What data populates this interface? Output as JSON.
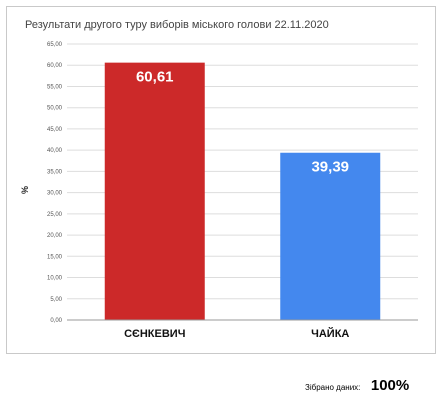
{
  "chart_data": {
    "type": "bar",
    "title": "Результати другого туру виборів міського голови 22.11.2020",
    "ylabel": "%",
    "xlabel": "",
    "categories": [
      "СЄНКЕВИЧ",
      "ЧАЙКА"
    ],
    "values": [
      60.61,
      39.39
    ],
    "value_labels": [
      "60,61",
      "39,39"
    ],
    "colors": [
      "#cc2929",
      "#4488ee"
    ],
    "ylim": [
      0,
      65
    ],
    "yticks": [
      0,
      5,
      10,
      15,
      20,
      25,
      30,
      35,
      40,
      45,
      50,
      55,
      60,
      65
    ],
    "ytick_labels": [
      "0,00",
      "5,00",
      "10,00",
      "15,00",
      "20,00",
      "25,00",
      "30,00",
      "35,00",
      "40,00",
      "45,00",
      "50,00",
      "55,00",
      "60,00",
      "65,00"
    ],
    "grid": true,
    "legend": "none"
  },
  "footer": {
    "label": "Зібрано даних:",
    "value": "100%"
  }
}
